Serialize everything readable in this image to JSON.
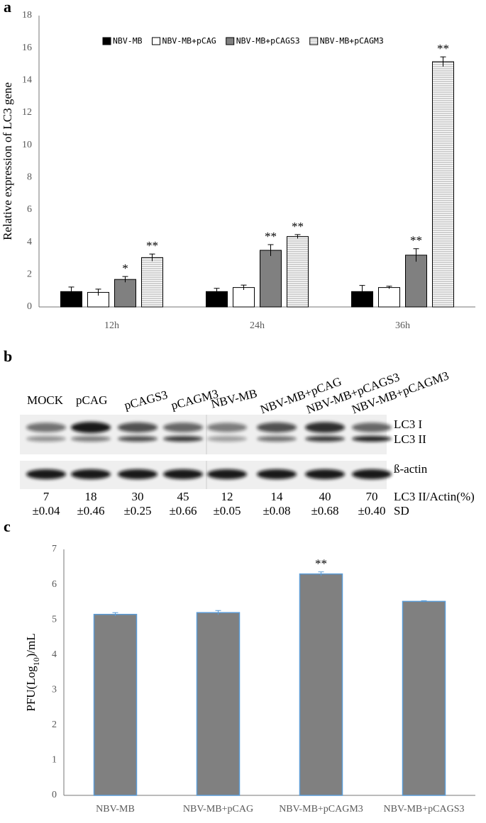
{
  "chart_data": [
    {
      "type": "bar",
      "label": "a",
      "y_label": "Relative expression of LC3 gene",
      "categories": [
        "12h",
        "24h",
        "36h"
      ],
      "series": [
        {
          "name": "NBV-MB",
          "color": "#000000",
          "values": [
            0.95,
            0.95,
            0.95
          ],
          "errors": [
            0.28,
            0.2,
            0.38
          ],
          "annotations": [
            null,
            null,
            null
          ]
        },
        {
          "name": "NBV-MB+pCAG",
          "color": "#ffffff",
          "values": [
            0.9,
            1.2,
            1.2
          ],
          "errors": [
            0.2,
            0.15,
            0.08
          ],
          "annotations": [
            null,
            null,
            null
          ]
        },
        {
          "name": "NBV-MB+pCAGS3",
          "color": "#808080",
          "values": [
            1.7,
            3.5,
            3.2
          ],
          "errors": [
            0.18,
            0.35,
            0.4
          ],
          "annotations": [
            "*",
            "**",
            "**"
          ]
        },
        {
          "name": "NBV-MB+pCAGM3",
          "color": "#ffffff",
          "pattern": "horizontal-lines",
          "values": [
            3.05,
            4.35,
            15.15
          ],
          "errors": [
            0.22,
            0.12,
            0.3
          ],
          "annotations": [
            "**",
            "**",
            "**"
          ]
        }
      ],
      "ylim": [
        0,
        18
      ],
      "yticks": [
        0,
        2,
        4,
        6,
        8,
        10,
        12,
        14,
        16,
        18
      ],
      "legend": "top"
    },
    {
      "type": "bar",
      "label": "c",
      "y_label_parts": [
        "PFU(Log",
        "10",
        ")/mL"
      ],
      "categories": [
        "NBV-MB",
        "NBV-MB+pCAG",
        "NBV-MB+pCAGM3",
        "NBV-MB+pCAGS3"
      ],
      "values": [
        5.15,
        5.2,
        6.3,
        5.52
      ],
      "errors": [
        0.05,
        0.06,
        0.06,
        0.02
      ],
      "annotations": [
        null,
        null,
        "**",
        null
      ],
      "color": "#808080",
      "edge_color": "#5b9bd5",
      "ylim": [
        0,
        7
      ],
      "yticks": [
        0,
        1,
        2,
        3,
        4,
        5,
        6,
        7
      ]
    }
  ],
  "blot": {
    "label": "b",
    "lanes": [
      "MOCK",
      "pCAG",
      "pCAGS3",
      "pCAGM3",
      "NBV-MB",
      "NBV-MB+pCAG",
      "NBV-MB+pCAGS3",
      "NBV-MB+pCAGM3"
    ],
    "rows": [
      "LC3 I",
      "LC3 II",
      "ß-actin"
    ],
    "ratio_label": "LC3 II/Actin(%)",
    "ratios": [
      7,
      18,
      30,
      45,
      12,
      14,
      40,
      70
    ],
    "sd_label": "SD",
    "sd": [
      "±0.04",
      "±0.46",
      "±0.25",
      "±0.66",
      "±0.05",
      "±0.08",
      "±0.68",
      "±0.40"
    ]
  }
}
